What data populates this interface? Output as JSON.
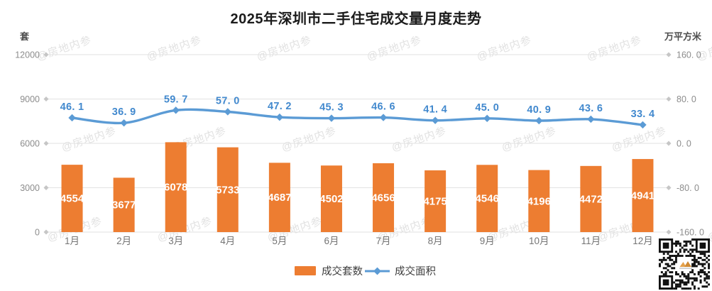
{
  "title": "2025年深圳市二手住宅成交量月度走势",
  "watermark": "@房地内参",
  "axes": {
    "left": {
      "unit": "套",
      "ticks": [
        "12000",
        "9000",
        "6000",
        "3000",
        "0"
      ]
    },
    "right": {
      "unit": "万平方米",
      "ticks": [
        "160. 0",
        "80. 0",
        "0. 0",
        "-80. 0",
        "-160. 0"
      ]
    }
  },
  "legend": {
    "bars": "成交套数",
    "line": "成交面积"
  },
  "colors": {
    "bar": "#ED7D31",
    "bar_label": "#FFFFFF",
    "line": "#5B9BD5",
    "line_label": "#4289CE",
    "grid": "#E2E2E2",
    "grid_marker": "#C6C6C6",
    "tick_text": "#8C8C8C",
    "month_text": "#757575",
    "title_text": "#1B1B1B",
    "unit_text": "#4D4D4D",
    "legend_text": "#3D3D3D",
    "watermark_text": "#9E9E9E"
  },
  "chart_data": {
    "type": "combo",
    "title": "2025年深圳市二手住宅成交量月度走势",
    "categories": [
      "1月",
      "2月",
      "3月",
      "4月",
      "5月",
      "6月",
      "7月",
      "8月",
      "9月",
      "10月",
      "11月",
      "12月"
    ],
    "series": [
      {
        "name": "成交套数",
        "type": "bar",
        "y_axis": "left",
        "unit": "套",
        "values": [
          4554,
          3677,
          6078,
          5733,
          4687,
          4502,
          4656,
          4175,
          4546,
          4196,
          4472,
          4941
        ]
      },
      {
        "name": "成交面积",
        "type": "line",
        "y_axis": "right",
        "unit": "万平方米",
        "values": [
          46.1,
          36.9,
          59.7,
          57.0,
          47.2,
          45.3,
          46.6,
          41.4,
          45.0,
          40.9,
          43.6,
          33.4
        ]
      }
    ],
    "left_axis": {
      "unit": "套",
      "min": 0,
      "max": 12000,
      "step": 3000
    },
    "right_axis": {
      "unit": "万平方米",
      "min": -160,
      "max": 160,
      "step": 80
    },
    "grid": true,
    "legend_position": "bottom"
  }
}
